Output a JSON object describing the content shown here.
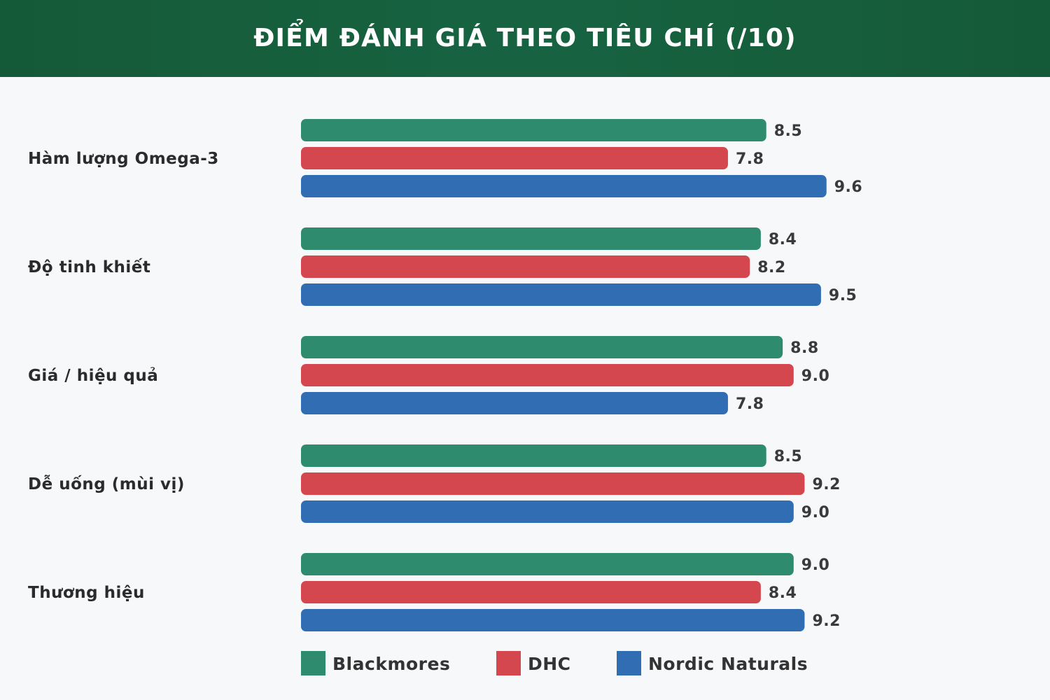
{
  "chart_data": {
    "type": "bar",
    "orientation": "horizontal",
    "title": "ĐIỂM ĐÁNH GIÁ THEO TIÊU CHÍ (/10)",
    "categories": [
      "Hàm lượng Omega-3",
      "Độ tinh khiết",
      "Giá / hiệu quả",
      "Dễ uống (mùi vị)",
      "Thương hiệu"
    ],
    "series": [
      {
        "name": "Blackmores",
        "color": "#2e8b6e",
        "values": [
          8.5,
          8.4,
          8.8,
          8.5,
          9.0
        ]
      },
      {
        "name": "DHC",
        "color": "#d4474f",
        "values": [
          7.8,
          8.2,
          9.0,
          9.2,
          8.4
        ]
      },
      {
        "name": "Nordic Naturals",
        "color": "#316db3",
        "values": [
          9.6,
          9.5,
          7.8,
          9.0,
          9.2
        ]
      }
    ],
    "value_labels": [
      [
        "8.5",
        "8.4",
        "8.8",
        "8.5",
        "9.0"
      ],
      [
        "7.8",
        "8.2",
        "9.0",
        "9.2",
        "8.4"
      ],
      [
        "9.6",
        "9.5",
        "7.8",
        "9.0",
        "9.2"
      ]
    ],
    "xlim": [
      0,
      10
    ],
    "grid": false,
    "legend_position": "bottom-left"
  },
  "colors": {
    "header_bg": "#155a38",
    "page_bg": "#f7f8fa"
  }
}
